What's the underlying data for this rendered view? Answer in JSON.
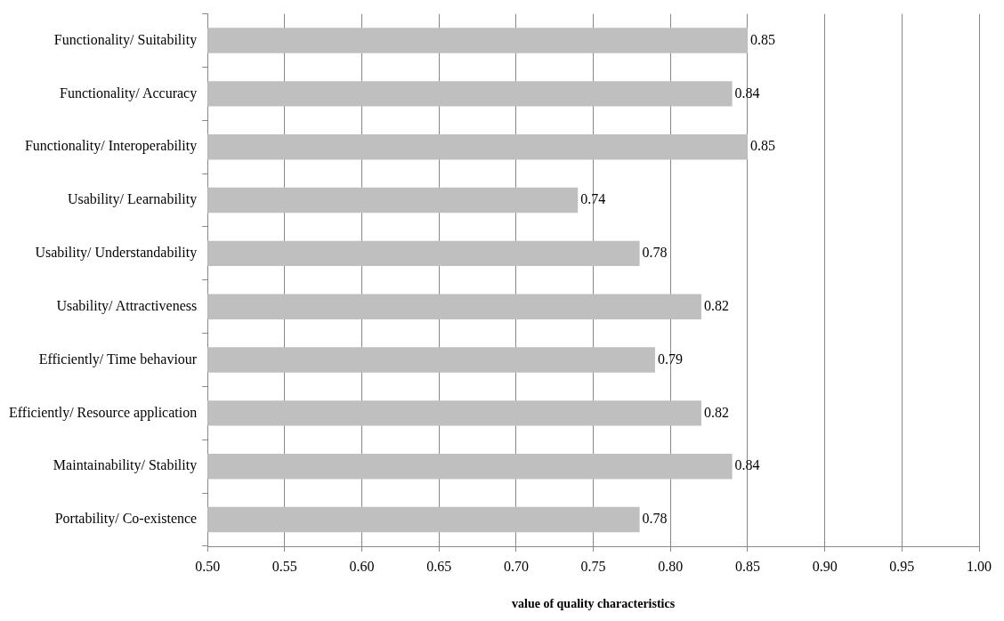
{
  "chart_data": {
    "type": "bar",
    "orientation": "horizontal",
    "xlabel": "value of quality characteristics",
    "categories": [
      "Functionality/ Suitability",
      "Functionality/ Accuracy",
      "Functionality/ Interoperability",
      "Usability/ Learnability",
      "Usability/ Understandability",
      "Usability/ Attractiveness",
      "Efficiently/ Time behaviour",
      "Efficiently/ Resource application",
      "Maintainability/ Stability",
      "Portability/ Co-existence"
    ],
    "values": [
      0.85,
      0.84,
      0.85,
      0.74,
      0.78,
      0.82,
      0.79,
      0.82,
      0.84,
      0.78
    ],
    "color": "#bfbfbf",
    "xlim": [
      0.5,
      1.0
    ],
    "xticks": [
      {
        "value": 0.5,
        "label": "0.50"
      },
      0.55,
      {
        "value": 0.6,
        "label": "0.60"
      },
      0.65,
      {
        "value": 0.7,
        "label": "0.70"
      },
      0.75,
      {
        "value": 0.8,
        "label": "0.80"
      },
      0.85,
      {
        "value": 0.9,
        "label": "0.90"
      },
      0.95,
      {
        "value": 1.0,
        "label": "1.00"
      }
    ],
    "grid": "x",
    "legend": false,
    "data_labels": true
  }
}
